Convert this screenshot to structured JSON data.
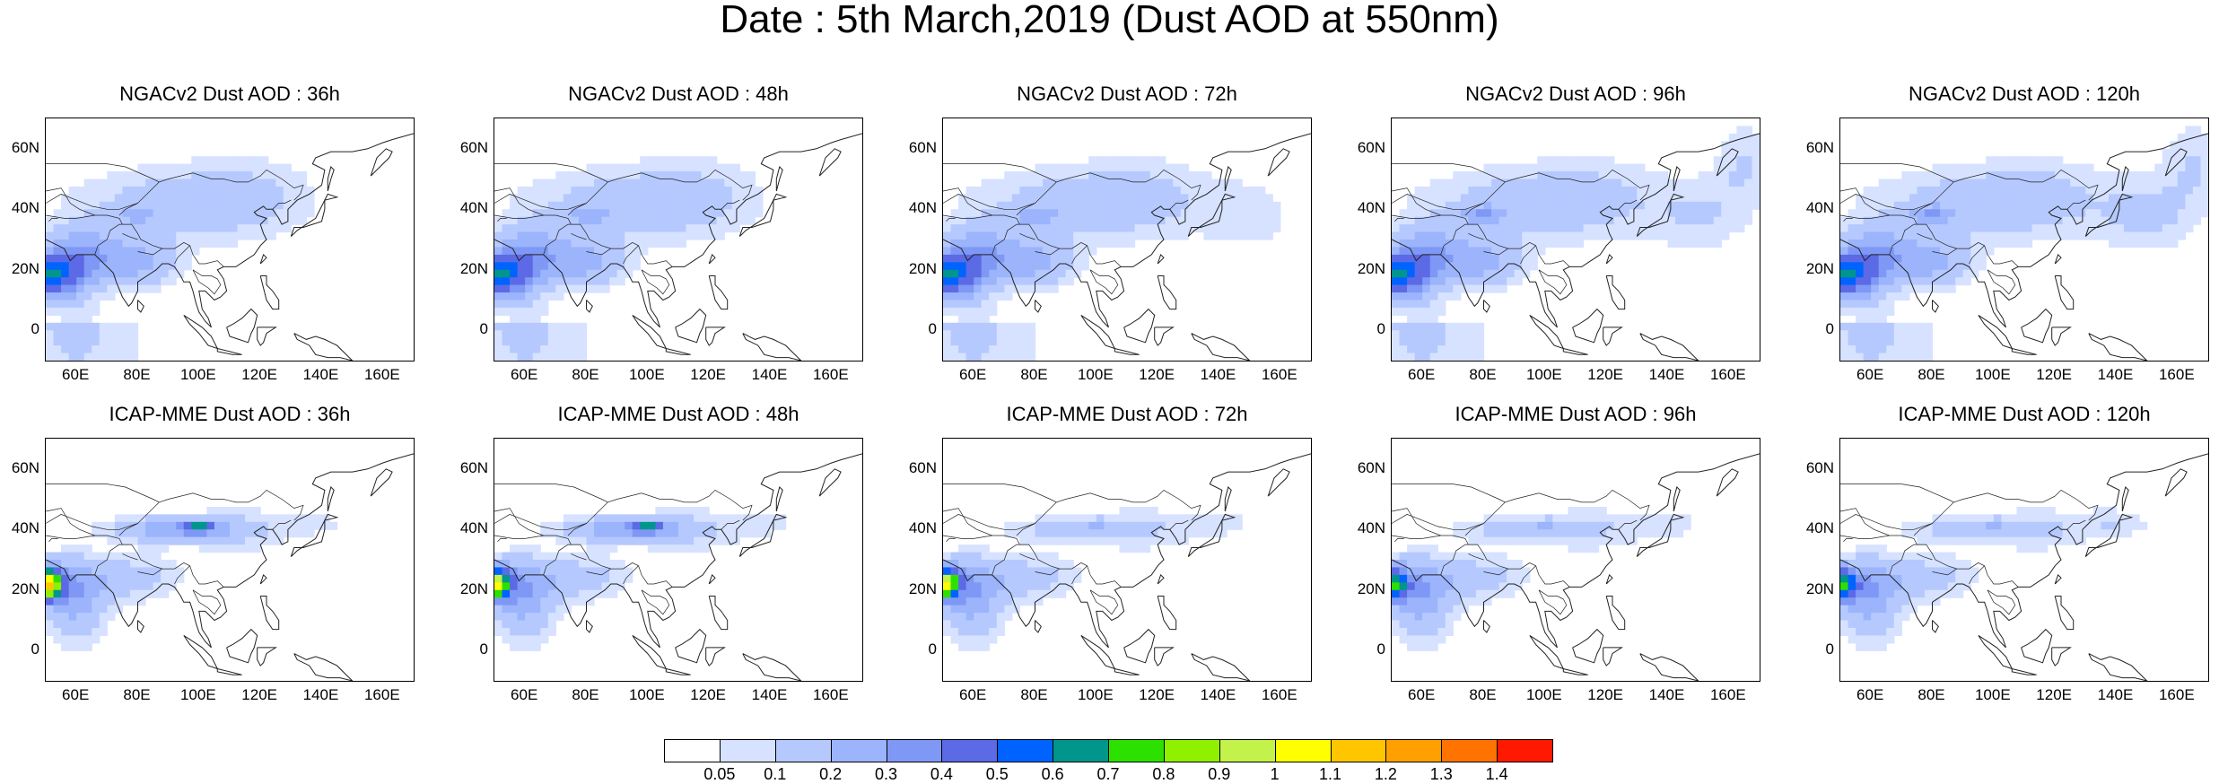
{
  "figure": {
    "title": "Date : 5th March,2019 (Dust AOD at 550nm)"
  },
  "map_axes": {
    "lat_ticks": [
      "60N",
      "40N",
      "20N",
      "0"
    ],
    "lon_ticks": [
      "60E",
      "80E",
      "100E",
      "120E",
      "140E",
      "160E"
    ],
    "lon_range": [
      50,
      170
    ],
    "lat_range": [
      -10,
      70
    ]
  },
  "panels": [
    {
      "title": "NGACv2 Dust AOD : 36h",
      "model": "NGACv2",
      "lead": "36h"
    },
    {
      "title": "NGACv2 Dust AOD : 48h",
      "model": "NGACv2",
      "lead": "48h"
    },
    {
      "title": "NGACv2 Dust AOD : 72h",
      "model": "NGACv2",
      "lead": "72h"
    },
    {
      "title": "NGACv2 Dust AOD : 96h",
      "model": "NGACv2",
      "lead": "96h"
    },
    {
      "title": "NGACv2 Dust AOD : 120h",
      "model": "NGACv2",
      "lead": "120h"
    },
    {
      "title": "ICAP-MME Dust AOD : 36h",
      "model": "ICAP-MME",
      "lead": "36h"
    },
    {
      "title": "ICAP-MME Dust AOD : 48h",
      "model": "ICAP-MME",
      "lead": "48h"
    },
    {
      "title": "ICAP-MME Dust AOD : 72h",
      "model": "ICAP-MME",
      "lead": "72h"
    },
    {
      "title": "ICAP-MME Dust AOD : 96h",
      "model": "ICAP-MME",
      "lead": "96h"
    },
    {
      "title": "ICAP-MME Dust AOD : 120h",
      "model": "ICAP-MME",
      "lead": "120h"
    }
  ],
  "colorbar": {
    "labels": [
      "0.05",
      "0.1",
      "0.2",
      "0.3",
      "0.4",
      "0.5",
      "0.6",
      "0.7",
      "0.8",
      "0.9",
      "1",
      "1.1",
      "1.2",
      "1.3",
      "1.4"
    ],
    "colors": [
      "#ffffff",
      "#d6e2ff",
      "#b5c9ff",
      "#9bb4fb",
      "#7f98f5",
      "#5c6ae6",
      "#0063ff",
      "#00968c",
      "#2ce000",
      "#8ff000",
      "#c3f24a",
      "#ffff00",
      "#ffc600",
      "#ffa000",
      "#ff7300",
      "#ff1900"
    ]
  }
}
